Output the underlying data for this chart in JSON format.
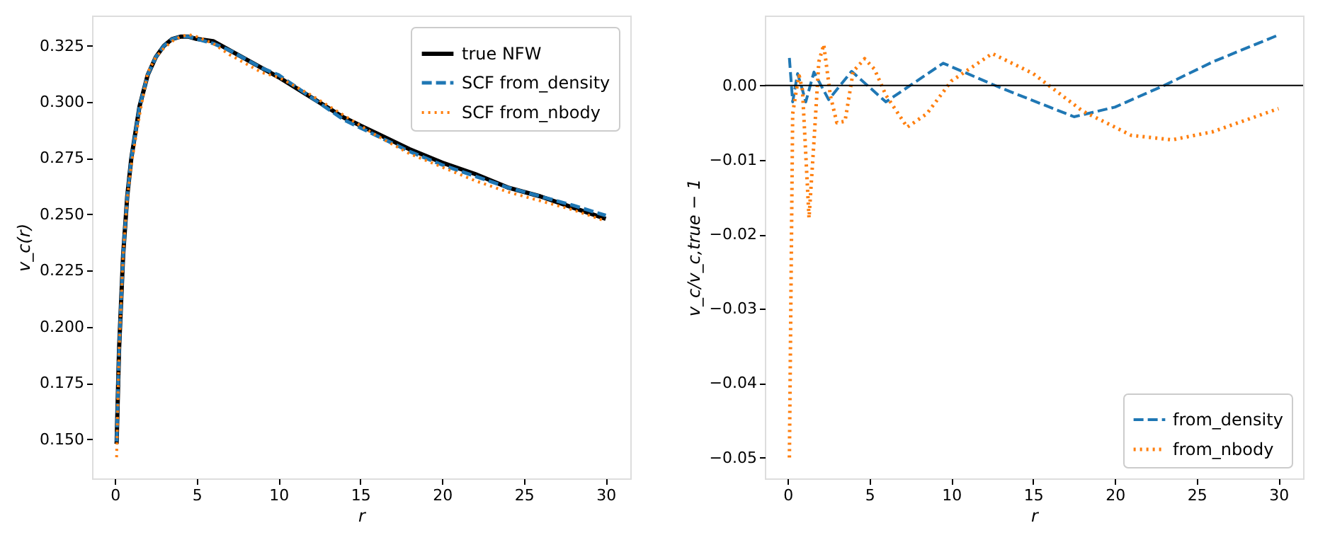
{
  "chart_data": [
    {
      "type": "line",
      "xlabel": "r",
      "ylabel": "v_c(r)",
      "xlim": [
        -1.4,
        31.5
      ],
      "xticks": [
        0,
        5,
        10,
        15,
        20,
        25,
        30
      ],
      "ylim": [
        0.1326,
        0.3384
      ],
      "yticks": [
        {
          "value": 0.15,
          "label": "0.150"
        },
        {
          "value": 0.175,
          "label": "0.175"
        },
        {
          "value": 0.2,
          "label": "0.200"
        },
        {
          "value": 0.225,
          "label": "0.225"
        },
        {
          "value": 0.25,
          "label": "0.250"
        },
        {
          "value": 0.275,
          "label": "0.275"
        },
        {
          "value": 0.3,
          "label": "0.300"
        },
        {
          "value": 0.325,
          "label": "0.325"
        }
      ],
      "grid": false,
      "legend": "top right",
      "series": [
        {
          "name": "true NFW",
          "color": "#000000",
          "line_style": "solid",
          "x": [
            0.1,
            0.25,
            0.5,
            0.75,
            1,
            1.5,
            2,
            2.5,
            3,
            3.5,
            4,
            4.5,
            5,
            6,
            7,
            8,
            9,
            10,
            12,
            14,
            16,
            18,
            20,
            22,
            24,
            26,
            28,
            30
          ],
          "values": [
            0.148,
            0.19,
            0.232,
            0.258,
            0.275,
            0.298,
            0.312,
            0.32,
            0.325,
            0.328,
            0.329,
            0.329,
            0.328,
            0.327,
            0.323,
            0.319,
            0.315,
            0.311,
            0.302,
            0.293,
            0.286,
            0.279,
            0.273,
            0.268,
            0.262,
            0.258,
            0.253,
            0.248
          ]
        },
        {
          "name": "SCF from_density",
          "color": "#1f77b4",
          "line_style": "dashed",
          "x": [
            0.1,
            0.25,
            0.5,
            0.75,
            1,
            1.5,
            2,
            2.5,
            3,
            3.5,
            4,
            4.5,
            5,
            6,
            7,
            8,
            9,
            10,
            12,
            14,
            16,
            18,
            20,
            22,
            24,
            26,
            28,
            30
          ],
          "values": [
            0.149,
            0.19,
            0.232,
            0.258,
            0.275,
            0.298,
            0.312,
            0.32,
            0.325,
            0.328,
            0.329,
            0.329,
            0.328,
            0.326,
            0.323,
            0.319,
            0.315,
            0.312,
            0.302,
            0.292,
            0.285,
            0.278,
            0.272,
            0.267,
            0.262,
            0.258,
            0.254,
            0.2495
          ]
        },
        {
          "name": "SCF from_nbody",
          "color": "#ff7f0e",
          "line_style": "dotted",
          "x": [
            0.1,
            0.25,
            0.5,
            0.75,
            1,
            1.5,
            2,
            2.5,
            3,
            3.5,
            4,
            4.5,
            5,
            6,
            7,
            8,
            9,
            10,
            12,
            14,
            16,
            18,
            20,
            22,
            24,
            26,
            28,
            30
          ],
          "values": [
            0.142,
            0.189,
            0.232,
            0.257,
            0.272,
            0.294,
            0.313,
            0.32,
            0.324,
            0.327,
            0.329,
            0.33,
            0.329,
            0.326,
            0.321,
            0.317,
            0.313,
            0.311,
            0.303,
            0.294,
            0.285,
            0.277,
            0.271,
            0.265,
            0.26,
            0.256,
            0.252,
            0.247
          ]
        }
      ]
    },
    {
      "type": "line",
      "xlabel": "r",
      "ylabel": "v_c/v_c,true − 1",
      "xlim": [
        -1.4,
        31.5
      ],
      "xticks": [
        0,
        5,
        10,
        15,
        20,
        25,
        30
      ],
      "ylim": [
        -0.0528,
        0.0094
      ],
      "yticks": [
        {
          "value": -0.05,
          "label": "−0.05"
        },
        {
          "value": -0.04,
          "label": "−0.04"
        },
        {
          "value": -0.03,
          "label": "−0.03"
        },
        {
          "value": -0.02,
          "label": "−0.02"
        },
        {
          "value": -0.01,
          "label": "−0.01"
        },
        {
          "value": 0,
          "label": "0.00"
        }
      ],
      "grid": false,
      "legend": "bottom right",
      "ref_lines": [
        {
          "axis": "y",
          "value": 0,
          "color": "#000000",
          "line_style": "solid"
        }
      ],
      "series": [
        {
          "name": "from_density",
          "color": "#1f77b4",
          "line_style": "dashed",
          "x": [
            0.1,
            0.3,
            0.6,
            0.9,
            1.1,
            1.6,
            2.5,
            3.9,
            6,
            9.5,
            13,
            17.5,
            20,
            23,
            26,
            30
          ],
          "values": [
            0.0037,
            -0.0022,
            0.0016,
            -0.0006,
            -0.0022,
            0.0018,
            -0.0019,
            0.0019,
            -0.0022,
            0.003,
            -0.0003,
            -0.0042,
            -0.0029,
            0.0,
            0.0032,
            0.0068
          ]
        },
        {
          "name": "from_nbody",
          "color": "#ff7f0e",
          "line_style": "dotted",
          "x": [
            0.1,
            0.3,
            0.55,
            0.7,
            0.9,
            1.3,
            1.6,
            1.9,
            2.2,
            2.6,
            3.0,
            3.5,
            4.0,
            4.7,
            5.3,
            6,
            7.3,
            8.5,
            10,
            12.5,
            15,
            18,
            21,
            23.5,
            26,
            30
          ],
          "values": [
            -0.05,
            -0.0038,
            -0.0003,
            0.0013,
            -0.0006,
            -0.0178,
            -0.0076,
            0.0032,
            0.0055,
            -0.0013,
            -0.005,
            -0.0048,
            0.0019,
            0.0036,
            0.0022,
            -0.0013,
            -0.0056,
            -0.0038,
            0.0006,
            0.0043,
            0.0016,
            -0.0034,
            -0.0067,
            -0.0073,
            -0.0062,
            -0.0031
          ]
        }
      ]
    }
  ]
}
